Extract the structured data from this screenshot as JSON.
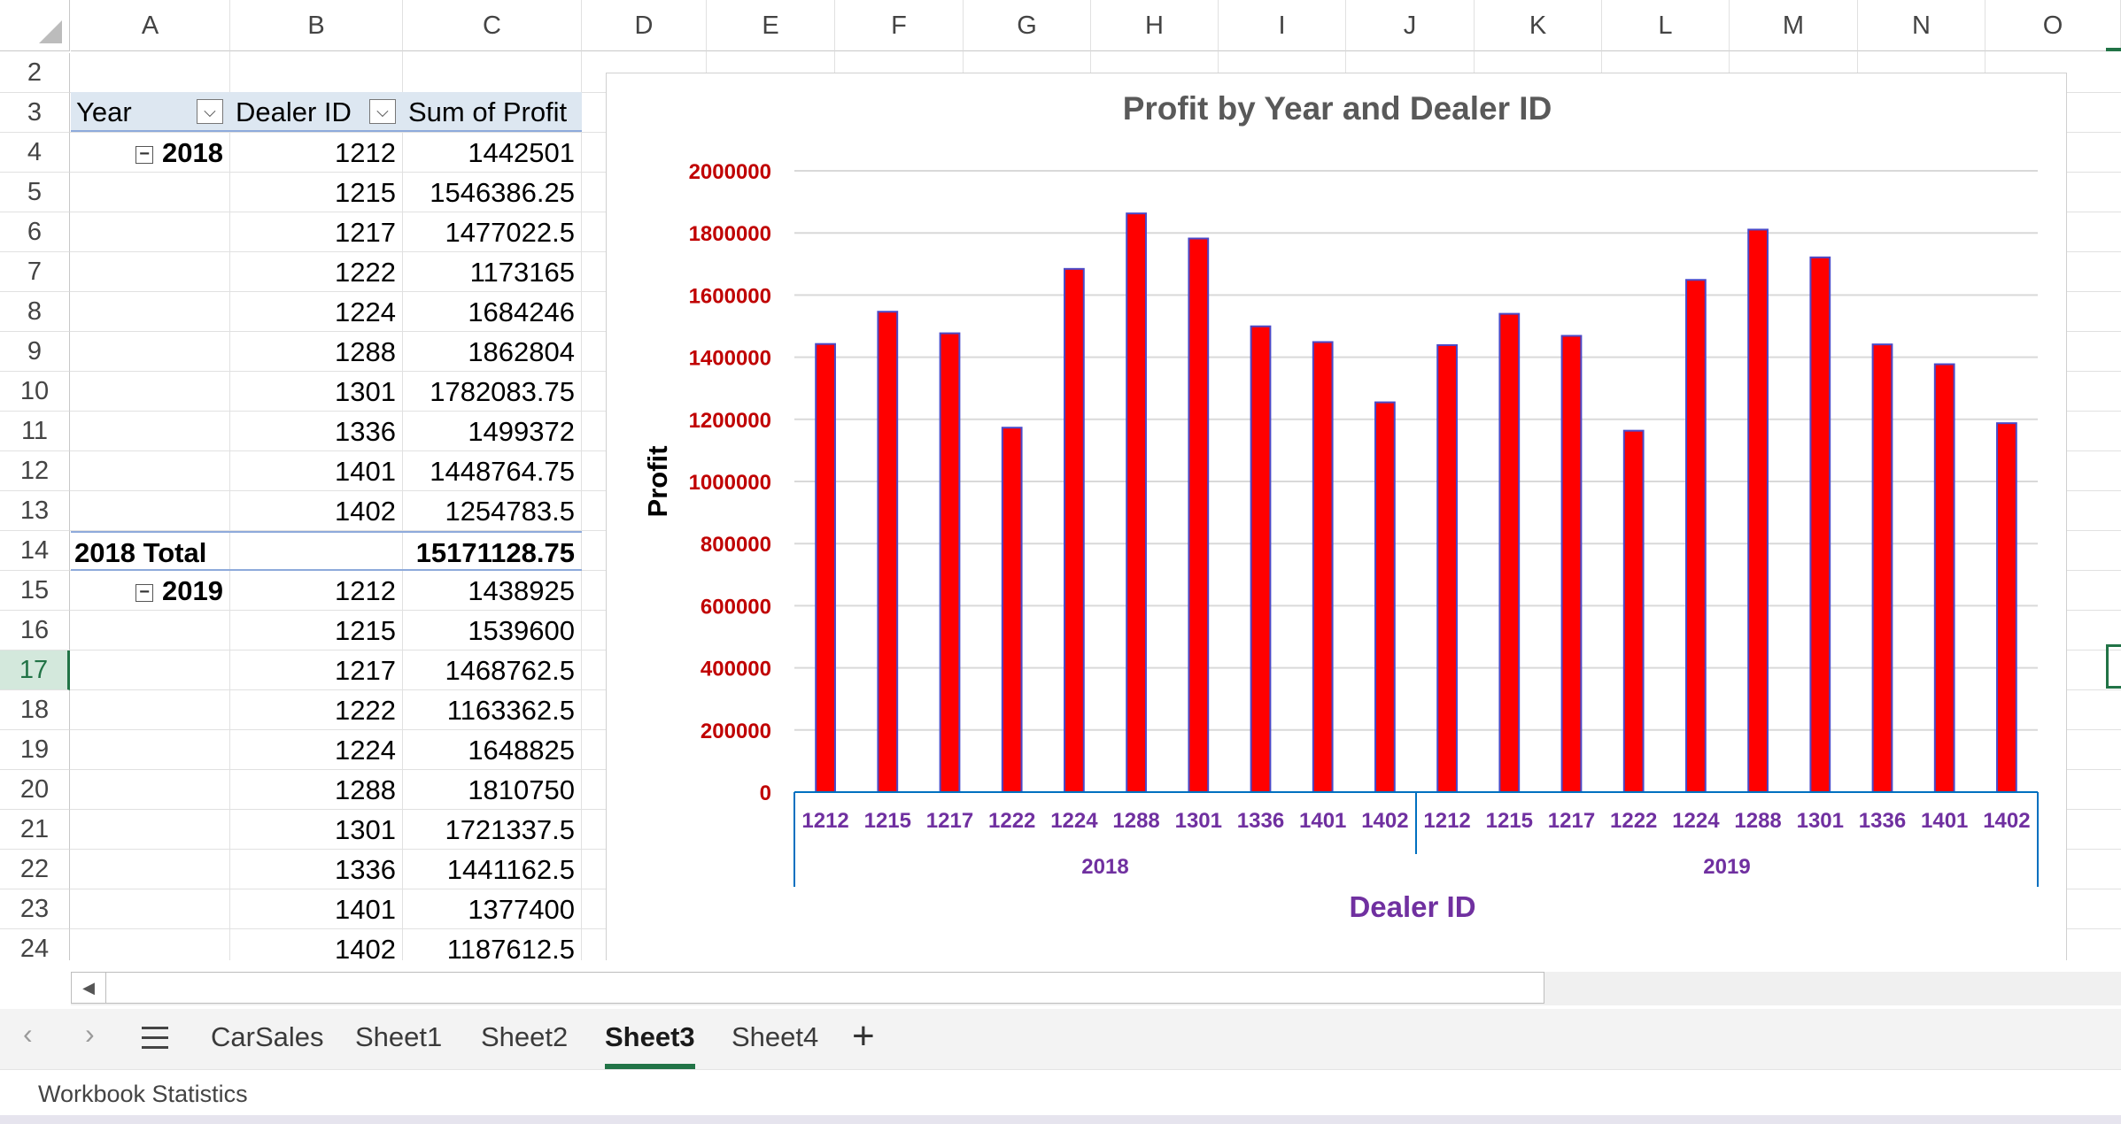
{
  "columns": [
    "A",
    "B",
    "C",
    "D",
    "E",
    "F",
    "G",
    "H",
    "I",
    "J",
    "K",
    "L",
    "M",
    "N",
    "O"
  ],
  "rows": [
    "2",
    "3",
    "4",
    "5",
    "6",
    "7",
    "8",
    "9",
    "10",
    "11",
    "12",
    "13",
    "14",
    "15",
    "16",
    "17",
    "18",
    "19",
    "20",
    "21",
    "22",
    "23",
    "24"
  ],
  "pivot": {
    "headers": {
      "year": "Year",
      "dealer": "Dealer ID",
      "sum": "Sum of Profit"
    },
    "year2018": "2018",
    "year2019": "2019",
    "rows2018": [
      {
        "dealer": "1212",
        "profit": "1442501"
      },
      {
        "dealer": "1215",
        "profit": "1546386.25"
      },
      {
        "dealer": "1217",
        "profit": "1477022.5"
      },
      {
        "dealer": "1222",
        "profit": "1173165"
      },
      {
        "dealer": "1224",
        "profit": "1684246"
      },
      {
        "dealer": "1288",
        "profit": "1862804"
      },
      {
        "dealer": "1301",
        "profit": "1782083.75"
      },
      {
        "dealer": "1336",
        "profit": "1499372"
      },
      {
        "dealer": "1401",
        "profit": "1448764.75"
      },
      {
        "dealer": "1402",
        "profit": "1254783.5"
      }
    ],
    "total2018_label": "2018 Total",
    "total2018_value": "15171128.75",
    "rows2019": [
      {
        "dealer": "1212",
        "profit": "1438925"
      },
      {
        "dealer": "1215",
        "profit": "1539600"
      },
      {
        "dealer": "1217",
        "profit": "1468762.5"
      },
      {
        "dealer": "1222",
        "profit": "1163362.5"
      },
      {
        "dealer": "1224",
        "profit": "1648825"
      },
      {
        "dealer": "1288",
        "profit": "1810750"
      },
      {
        "dealer": "1301",
        "profit": "1721337.5"
      },
      {
        "dealer": "1336",
        "profit": "1441162.5"
      },
      {
        "dealer": "1401",
        "profit": "1377400"
      },
      {
        "dealer": "1402",
        "profit": "1187612.5"
      }
    ]
  },
  "chart_data": {
    "type": "bar",
    "title": "Profit by Year and Dealer ID",
    "xlabel": "Dealer ID",
    "ylabel": "Profit",
    "ylim": [
      0,
      2000000
    ],
    "yticks": [
      "0",
      "200000",
      "400000",
      "600000",
      "800000",
      "1000000",
      "1200000",
      "1400000",
      "1600000",
      "1800000",
      "2000000"
    ],
    "groups": [
      {
        "name": "2018",
        "categories": [
          "1212",
          "1215",
          "1217",
          "1222",
          "1224",
          "1288",
          "1301",
          "1336",
          "1401",
          "1402"
        ],
        "values": [
          1442501,
          1546386.25,
          1477022.5,
          1173165,
          1684246,
          1862804,
          1782083.75,
          1499372,
          1448764.75,
          1254783.5
        ]
      },
      {
        "name": "2019",
        "categories": [
          "1212",
          "1215",
          "1217",
          "1222",
          "1224",
          "1288",
          "1301",
          "1336",
          "1401",
          "1402"
        ],
        "values": [
          1438925,
          1539600,
          1468762.5,
          1163362.5,
          1648825,
          1810750,
          1721337.5,
          1441162.5,
          1377400,
          1187612.5
        ]
      }
    ],
    "grid": true,
    "legend": "none",
    "colors": {
      "bar_fill": "#FF0000",
      "bar_edge": "#4A4AC8",
      "tick_label": "#C00000",
      "category_label": "#7030A0",
      "title": "#595959",
      "axis_line": "#0070C0"
    }
  },
  "sheet_tabs": [
    "CarSales",
    "Sheet1",
    "Sheet2",
    "Sheet3",
    "Sheet4"
  ],
  "active_tab": "Sheet3",
  "nav": {
    "prev": "‹",
    "next": "›",
    "add": "+"
  },
  "status": "Workbook Statistics"
}
